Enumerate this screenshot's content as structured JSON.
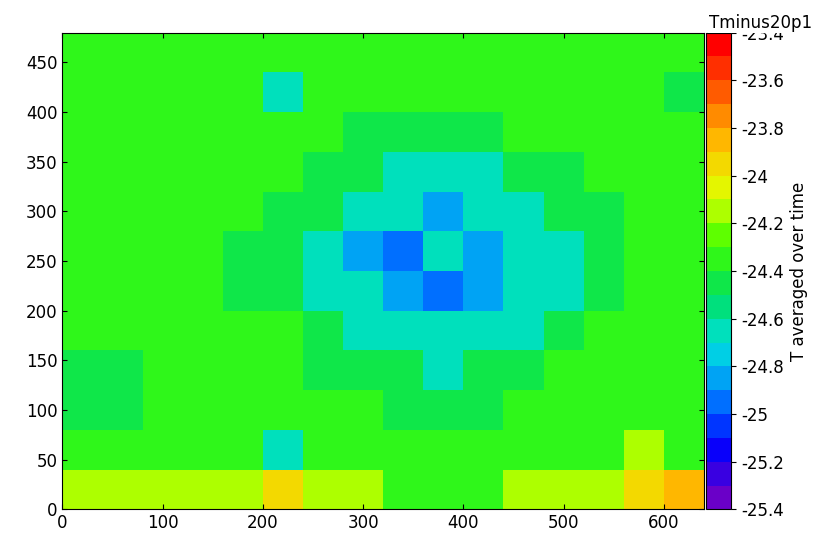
{
  "chart_data": {
    "type": "heatmap",
    "title": "Tminus20p1",
    "colorbar_label": "T averaged over time",
    "x_edges": [
      0,
      40,
      80,
      120,
      160,
      200,
      240,
      280,
      320,
      360,
      400,
      440,
      480,
      520,
      560,
      600,
      640
    ],
    "y_edges": [
      0,
      40,
      80,
      120,
      160,
      200,
      240,
      280,
      320,
      360,
      400,
      440,
      480
    ],
    "cells": [
      [
        -24.2,
        -24.2,
        -24.2,
        -24.2,
        -24.2,
        -24.0,
        -24.2,
        -24.2,
        -24.3,
        -24.3,
        -24.3,
        -24.2,
        -24.2,
        -24.1,
        -24.0,
        -23.9
      ],
      [
        -24.3,
        -24.3,
        -24.3,
        -24.3,
        -24.3,
        -24.6,
        -24.4,
        -24.4,
        -24.4,
        -24.4,
        -24.4,
        -24.4,
        -24.3,
        -24.3,
        -24.2,
        -24.4
      ],
      [
        -24.5,
        -24.5,
        -24.4,
        -24.4,
        -24.4,
        -24.4,
        -24.4,
        -24.4,
        -24.5,
        -24.5,
        -24.5,
        -24.4,
        -24.4,
        -24.4,
        -24.3,
        -24.3
      ],
      [
        -24.5,
        -24.5,
        -24.4,
        -24.4,
        -24.4,
        -24.4,
        -24.5,
        -24.5,
        -24.5,
        -24.6,
        -24.5,
        -24.5,
        -24.4,
        -24.4,
        -24.4,
        -24.3
      ],
      [
        -24.4,
        -24.4,
        -24.4,
        -24.3,
        -24.4,
        -24.4,
        -24.5,
        -24.6,
        -24.7,
        -24.7,
        -24.7,
        -24.6,
        -24.5,
        -24.4,
        -24.4,
        -24.4
      ],
      [
        -24.4,
        -24.4,
        -24.4,
        -24.4,
        -24.5,
        -24.5,
        -24.6,
        -24.7,
        -24.9,
        -25.0,
        -24.9,
        -24.7,
        -24.6,
        -24.5,
        -24.4,
        -24.4
      ],
      [
        -24.4,
        -24.4,
        -24.4,
        -24.4,
        -24.5,
        -24.5,
        -24.6,
        -24.8,
        -25.0,
        -24.6,
        -24.9,
        -24.7,
        -24.6,
        -24.5,
        -24.4,
        -24.4
      ],
      [
        -24.4,
        -24.4,
        -24.4,
        -24.4,
        -24.4,
        -24.5,
        -24.5,
        -24.6,
        -24.7,
        -24.8,
        -24.7,
        -24.6,
        -24.5,
        -24.5,
        -24.4,
        -24.4
      ],
      [
        -24.4,
        -24.4,
        -24.4,
        -24.4,
        -24.4,
        -24.4,
        -24.5,
        -24.5,
        -24.6,
        -24.6,
        -24.6,
        -24.5,
        -24.5,
        -24.4,
        -24.4,
        -24.4
      ],
      [
        -24.4,
        -24.4,
        -24.4,
        -24.4,
        -24.4,
        -24.4,
        -24.4,
        -24.5,
        -24.5,
        -24.5,
        -24.5,
        -24.4,
        -24.4,
        -24.4,
        -24.4,
        -24.4
      ],
      [
        -24.4,
        -24.4,
        -24.4,
        -24.4,
        -24.4,
        -24.6,
        -24.4,
        -24.4,
        -24.4,
        -24.4,
        -24.4,
        -24.4,
        -24.4,
        -24.4,
        -24.4,
        -24.5
      ],
      [
        -24.4,
        -24.4,
        -24.4,
        -24.4,
        -24.4,
        -24.4,
        -24.4,
        -24.4,
        -24.4,
        -24.4,
        -24.4,
        -24.4,
        -24.4,
        -24.4,
        -24.4,
        -24.4
      ]
    ],
    "xlim": [
      0,
      640
    ],
    "ylim": [
      0,
      480
    ],
    "xticks": [
      0,
      100,
      200,
      300,
      400,
      500,
      600
    ],
    "yticks": [
      0,
      50,
      100,
      150,
      200,
      250,
      300,
      350,
      400,
      450
    ],
    "colorbar_range": [
      -25.4,
      -23.4
    ],
    "colorbar_ticks": [
      -25.4,
      -25.2,
      -25,
      -24.8,
      -24.6,
      -24.4,
      -24.2,
      -24,
      -23.8,
      -23.6,
      -23.4
    ]
  }
}
